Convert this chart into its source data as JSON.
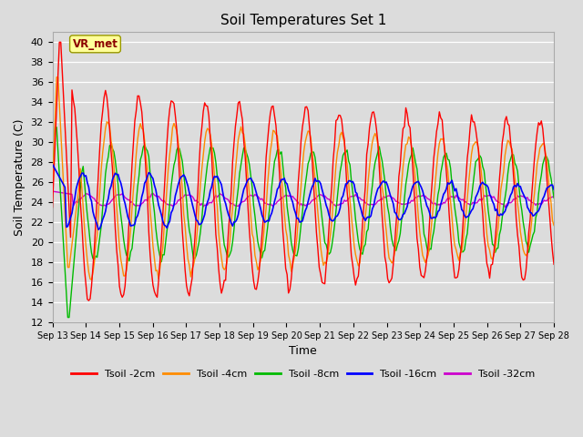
{
  "title": "Soil Temperatures Set 1",
  "xlabel": "Time",
  "ylabel": "Soil Temperature (C)",
  "ylim": [
    12,
    41
  ],
  "yticks": [
    12,
    14,
    16,
    18,
    20,
    22,
    24,
    26,
    28,
    30,
    32,
    34,
    36,
    38,
    40
  ],
  "colors": {
    "Tsoil -2cm": "#FF0000",
    "Tsoil -4cm": "#FF8C00",
    "Tsoil -8cm": "#00BB00",
    "Tsoil -16cm": "#0000FF",
    "Tsoil -32cm": "#CC00CC"
  },
  "annotation_text": "VR_met",
  "bg_color": "#DCDCDC",
  "n_days": 15,
  "start_day": 13,
  "figsize": [
    6.4,
    4.8
  ],
  "dpi": 100
}
